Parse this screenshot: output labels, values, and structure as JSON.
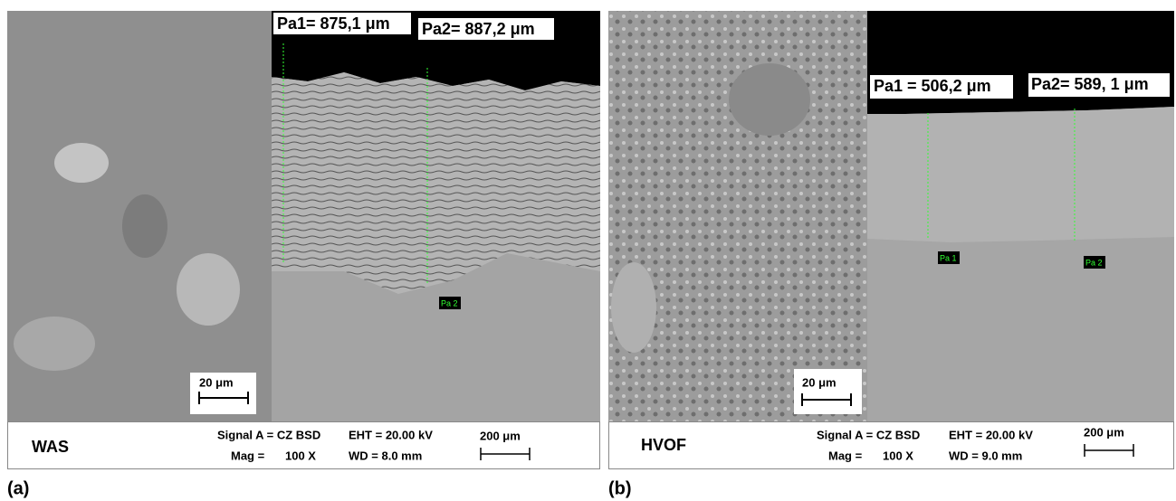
{
  "panels": [
    {
      "label": "(a)",
      "inset_scale": "20 μm",
      "measurements": [
        "Pa1= 875,1 μm",
        "Pa2= 887,2 μm"
      ],
      "markers": [
        "Pa 2"
      ],
      "footer": {
        "sample": "WAS",
        "signal": "Signal A = CZ BSD",
        "mag_label": "Mag =",
        "mag": "100 X",
        "eht": "EHT = 20.00 kV",
        "wd": "WD =  8.0 mm",
        "scale": "200 μm"
      }
    },
    {
      "label": "(b)",
      "inset_scale": "20 μm",
      "measurements": [
        "Pa1 = 506,2 μm",
        "Pa2= 589, 1 μm"
      ],
      "markers": [
        "Pa 1",
        "Pa 2"
      ],
      "footer": {
        "sample": "HVOF",
        "signal": "Signal A = CZ BSD",
        "mag_label": "Mag =",
        "mag": "100 X",
        "eht": "EHT = 20.00 kV",
        "wd": "WD =  9.0 mm",
        "scale": "200 μm"
      }
    }
  ]
}
